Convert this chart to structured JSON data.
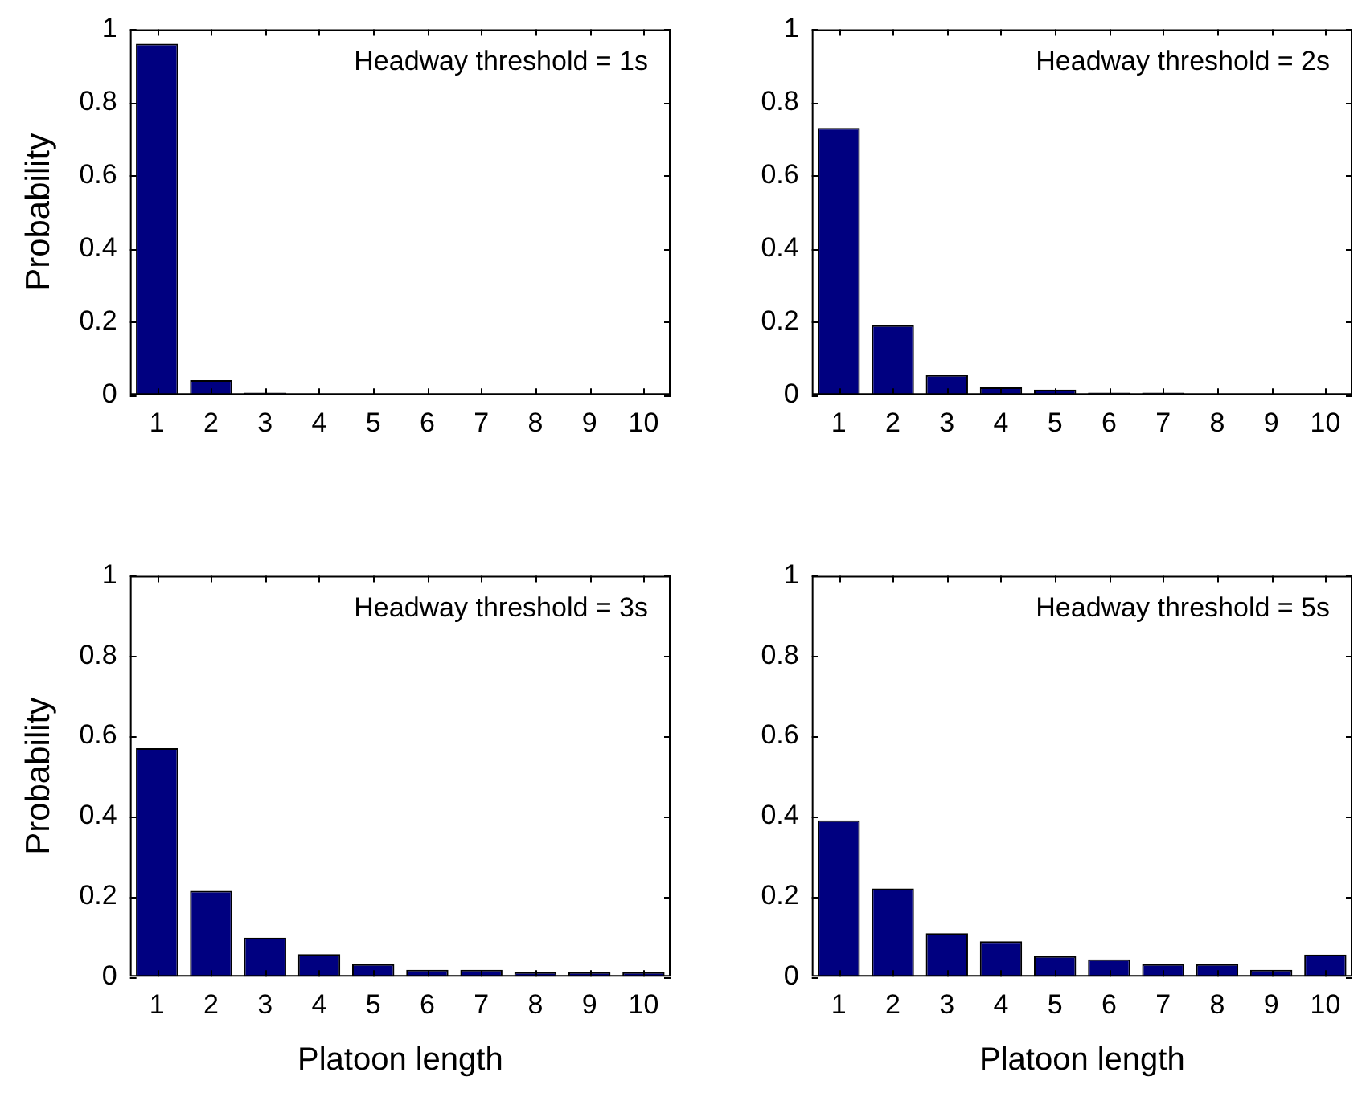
{
  "chart_data": [
    {
      "type": "bar",
      "categories": [
        "1",
        "2",
        "3",
        "4",
        "5",
        "6",
        "7",
        "8",
        "9",
        "10"
      ],
      "values": [
        0.96,
        0.04,
        0.006,
        0,
        0,
        0,
        0,
        0,
        0,
        0
      ],
      "color": "#000080",
      "ylabel": "Probability",
      "ylim": [
        0,
        1
      ],
      "yticks": [
        0,
        0.2,
        0.4,
        0.6,
        0.8,
        1
      ],
      "annotations": [
        "Headway threshold = 1s"
      ],
      "grid": false,
      "legend": false
    },
    {
      "type": "bar",
      "categories": [
        "1",
        "2",
        "3",
        "4",
        "5",
        "6",
        "7",
        "8",
        "9",
        "10"
      ],
      "values": [
        0.73,
        0.19,
        0.054,
        0.02,
        0.014,
        0.006,
        0.006,
        0,
        0,
        0
      ],
      "color": "#000080",
      "ylim": [
        0,
        1
      ],
      "yticks": [
        0,
        0.2,
        0.4,
        0.6,
        0.8,
        1
      ],
      "annotations": [
        "Headway threshold = 2s"
      ],
      "grid": false,
      "legend": false
    },
    {
      "type": "bar",
      "categories": [
        "1",
        "2",
        "3",
        "4",
        "5",
        "6",
        "7",
        "8",
        "9",
        "10"
      ],
      "values": [
        0.57,
        0.214,
        0.097,
        0.056,
        0.031,
        0.017,
        0.017,
        0.011,
        0.011,
        0.011
      ],
      "color": "#000080",
      "xlabel": "Platoon length",
      "ylabel": "Probability",
      "ylim": [
        0,
        1
      ],
      "yticks": [
        0,
        0.2,
        0.4,
        0.6,
        0.8,
        1
      ],
      "annotations": [
        "Headway threshold = 3s"
      ],
      "grid": false,
      "legend": false
    },
    {
      "type": "bar",
      "categories": [
        "1",
        "2",
        "3",
        "4",
        "5",
        "6",
        "7",
        "8",
        "9",
        "10"
      ],
      "values": [
        0.39,
        0.22,
        0.108,
        0.088,
        0.051,
        0.043,
        0.031,
        0.031,
        0.017,
        0.055
      ],
      "color": "#000080",
      "xlabel": "Platoon length",
      "ylim": [
        0,
        1
      ],
      "yticks": [
        0,
        0.2,
        0.4,
        0.6,
        0.8,
        1
      ],
      "annotations": [
        "Headway threshold = 5s"
      ],
      "grid": false,
      "legend": false
    }
  ]
}
